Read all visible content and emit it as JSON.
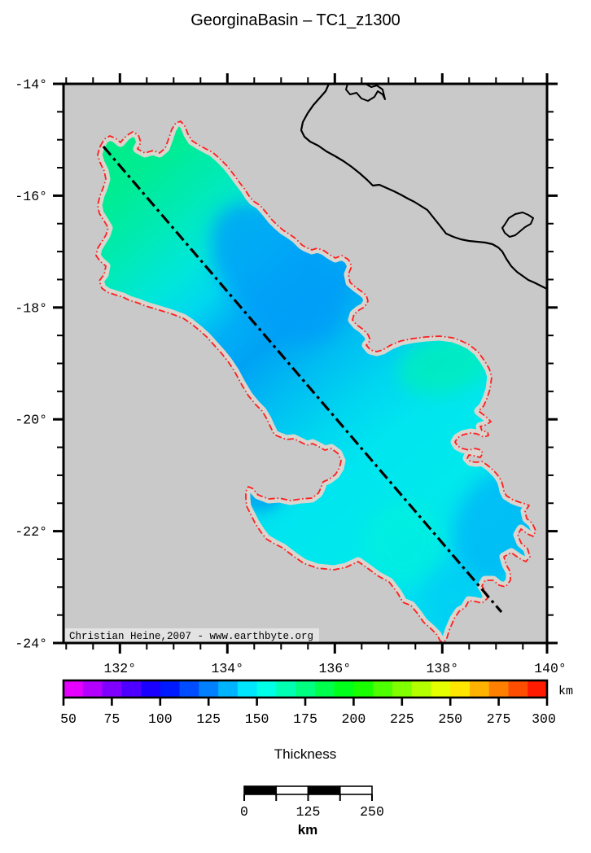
{
  "title": "GeorginaBasin – TC1_z1300",
  "map": {
    "region_name": "Georgina Basin outline",
    "transect_name": "TC1 transect line",
    "attribution": "Christian Heine,2007 - www.earthbyte.org",
    "y_axis_tick_labels": [
      "-14°",
      "-16°",
      "-18°",
      "-20°",
      "-22°",
      "-24°"
    ],
    "y_axis_tick_values": [
      -14,
      -16,
      -18,
      -20,
      -22,
      -24
    ],
    "x_axis_tick_labels": [
      "132°",
      "134°",
      "136°",
      "138°",
      "140°"
    ],
    "x_axis_tick_values": [
      132,
      134,
      136,
      138,
      140
    ],
    "colors": {
      "background_gray": "#c9c9c9",
      "basin_outline_red": "#ff1f1f",
      "basin_halo": "#d9d5cf",
      "coastline": "#000000",
      "transect": "#000000",
      "basin_green_nw": "#00ed86",
      "basin_cyan": "#00e5ef",
      "basin_blue_core": "#009ef8"
    }
  },
  "colorbar": {
    "label": "Thickness",
    "unit": "km",
    "tick_labels": [
      "50",
      "75",
      "100",
      "125",
      "150",
      "175",
      "200",
      "225",
      "250",
      "275",
      "300"
    ],
    "tick_values": [
      50,
      75,
      100,
      125,
      150,
      175,
      200,
      225,
      250,
      275,
      300
    ],
    "min": 50,
    "max": 300,
    "cell_step": 10,
    "gradient_stops": [
      {
        "value": 50,
        "color": "#ff00ff"
      },
      {
        "value": 100,
        "color": "#0000ff"
      },
      {
        "value": 150,
        "color": "#00ffff"
      },
      {
        "value": 200,
        "color": "#00ff00"
      },
      {
        "value": 250,
        "color": "#ffff00"
      },
      {
        "value": 300,
        "color": "#ff0000"
      }
    ]
  },
  "scalebar": {
    "tick_labels": [
      "0",
      "125",
      "250"
    ],
    "tick_values": [
      0,
      125,
      250
    ],
    "unit": "km",
    "segments": 4,
    "length_km": 250
  }
}
